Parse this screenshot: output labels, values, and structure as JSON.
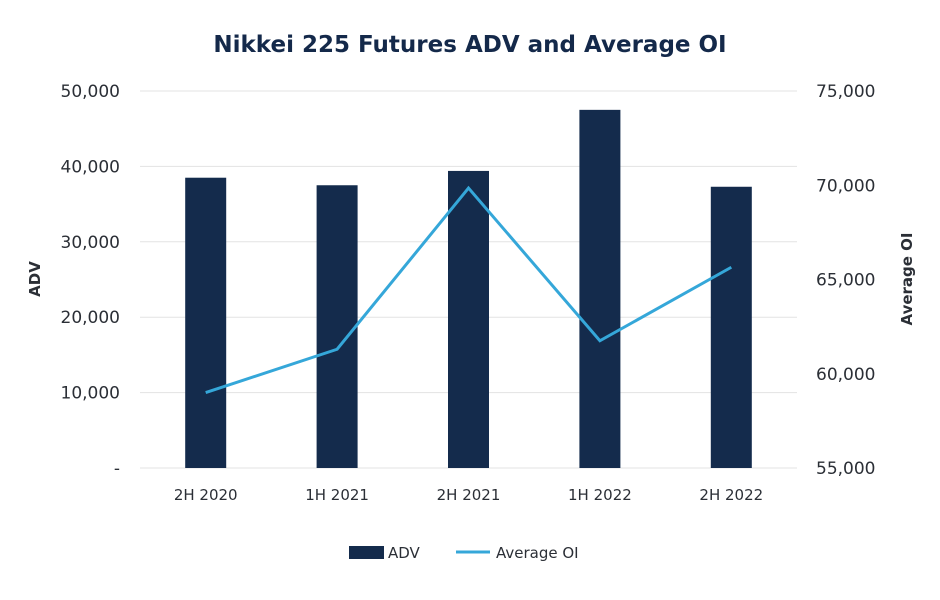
{
  "chart_data": {
    "type": "bar+line",
    "title": "Nikkei 225 Futures ADV and Average OI",
    "categories": [
      "2H 2020",
      "1H 2021",
      "2H 2021",
      "1H 2022",
      "2H 2022"
    ],
    "series": [
      {
        "name": "ADV",
        "type": "bar",
        "axis": "left",
        "color": "#142b4c",
        "values": [
          38500,
          37500,
          39400,
          47500,
          37300
        ]
      },
      {
        "name": "Average OI",
        "type": "line",
        "axis": "right",
        "color": "#35a7d9",
        "values": [
          59000,
          61300,
          69850,
          61750,
          65650
        ]
      }
    ],
    "xlabel": "",
    "ylabel": "ADV",
    "y2label": "Average OI",
    "ylim": [
      0,
      50000
    ],
    "y2lim": [
      55000,
      75000
    ],
    "yticks": [
      "-",
      "10,000",
      "20,000",
      "30,000",
      "40,000",
      "50,000"
    ],
    "y2ticks": [
      "55,000",
      "60,000",
      "65,000",
      "70,000",
      "75,000"
    ],
    "grid": true,
    "legend_position": "bottom-center",
    "legend": [
      "ADV",
      "Average OI"
    ]
  }
}
